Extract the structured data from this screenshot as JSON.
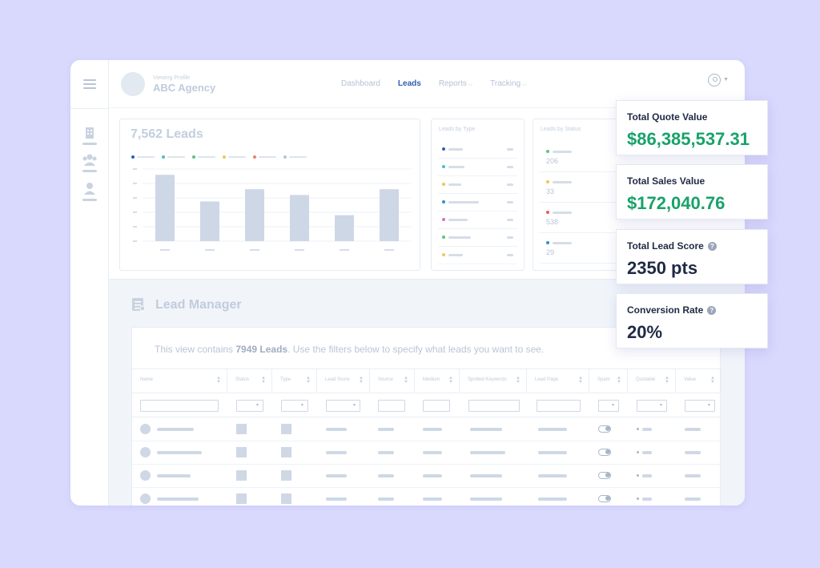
{
  "header": {
    "viewing_label": "Viewing Profile",
    "agency_name": "ABC Agency",
    "nav": [
      {
        "label": "Dashboard",
        "active": false,
        "dropdown": false
      },
      {
        "label": "Leads",
        "active": true,
        "dropdown": false
      },
      {
        "label": "Reports",
        "active": false,
        "dropdown": true
      },
      {
        "label": "Tracking",
        "active": false,
        "dropdown": true
      }
    ]
  },
  "sidebar": {
    "icons": [
      "building-icon",
      "team-icon",
      "user-icon"
    ]
  },
  "leads_chart": {
    "title": "7,562 Leads",
    "legend_colors": [
      "#2f5fb3",
      "#47c2c2",
      "#5ac47e",
      "#f4c35a",
      "#ef7d6f",
      "#b8c4d4"
    ]
  },
  "chart_data": {
    "type": "bar",
    "title": "7,562 Leads",
    "categories": [
      "",
      "",
      "",
      "",
      "",
      ""
    ],
    "values": [
      92,
      55,
      72,
      64,
      36,
      72
    ],
    "ylim": [
      0,
      100
    ],
    "grid": true,
    "color": "#cdd7e6"
  },
  "leads_by_type": {
    "title": "Leads by Type",
    "rows": [
      {
        "color": "#2f5fb3",
        "width": 18
      },
      {
        "color": "#47c2c2",
        "width": 20
      },
      {
        "color": "#f4c35a",
        "width": 16
      },
      {
        "color": "#2f8fd0",
        "width": 38
      },
      {
        "color": "#d56fd1",
        "width": 24
      },
      {
        "color": "#5ac47e",
        "width": 28
      },
      {
        "color": "#f4c35a",
        "width": 18
      }
    ]
  },
  "leads_by_status": {
    "title": "Leads by Status",
    "rows": [
      {
        "color": "#5ac47e",
        "count": "206"
      },
      {
        "color": "#f4c35a",
        "count": "33"
      },
      {
        "color": "#ef5b5b",
        "count": "538"
      },
      {
        "color": "#2f8fd0",
        "count": "29"
      }
    ]
  },
  "lead_manager": {
    "title": "Lead Manager",
    "info_prefix": "This view contains ",
    "info_count": "7949 Leads",
    "info_suffix": ". Use the filters below to specify what leads you want to see.",
    "columns": [
      "Name",
      "Status",
      "Type",
      "Lead Score",
      "Source",
      "Medium",
      "Spotted Keywords",
      "Lead Page",
      "Spam",
      "Quotable",
      "Value"
    ]
  },
  "kpis": [
    {
      "label": "Total Quote Value",
      "value": "$86,385,537.31",
      "style": "green",
      "help": false
    },
    {
      "label": "Total Sales Value",
      "value": "$172,040.76",
      "style": "green",
      "help": true
    },
    {
      "label": "Total Lead Score",
      "value": "2350 pts",
      "style": "dark",
      "help": true
    },
    {
      "label": "Conversion Rate",
      "value": "20%",
      "style": "dark",
      "help": true
    }
  ]
}
